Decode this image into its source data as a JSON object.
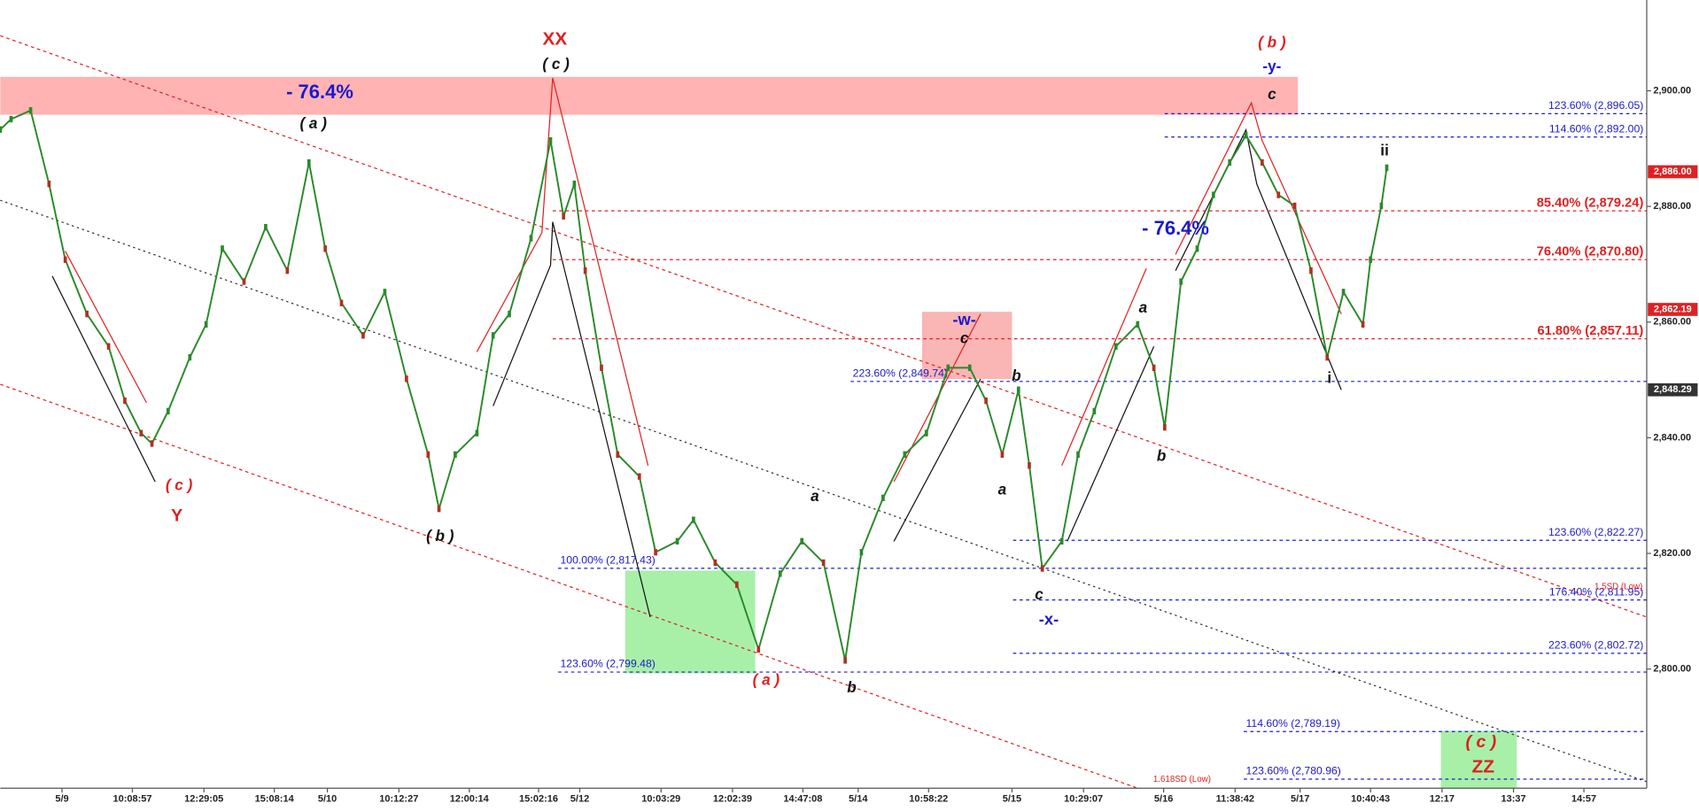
{
  "chart_data": {
    "type": "line",
    "ylim": [
      2779.4,
      2915.7
    ],
    "yticks": [
      {
        "value": 2800,
        "label": "2,800.00"
      },
      {
        "value": 2820,
        "label": "2,820.00"
      },
      {
        "value": 2840,
        "label": "2,840.00"
      },
      {
        "value": 2860,
        "label": "2,860.00"
      },
      {
        "value": 2880,
        "label": "2,880.00"
      },
      {
        "value": 2900,
        "label": "2,900.00"
      }
    ],
    "xtick_labels": [
      "5/9",
      "10:08:57",
      "12:29:05",
      "15:08:14",
      "5/10",
      "10:12:27",
      "12:00:14",
      "15:02:16",
      "5/12",
      "10:03:29",
      "12:02:39",
      "14:47:08",
      "5/14",
      "10:58:22",
      "5/15",
      "10:29:07",
      "5/16",
      "11:38:42",
      "5/17",
      "10:40:43",
      "12:17",
      "13:37",
      "14:57"
    ],
    "series": [
      {
        "color": "#2a8a2a",
        "values": [
          2893.3,
          2895.1,
          2896.6,
          2883.9,
          2870.8,
          2861.4,
          2855.8,
          2846.4,
          2840.8,
          2839.0,
          2844.6,
          2853.9,
          2859.6,
          2872.7,
          2867.0,
          2876.4,
          2868.9,
          2887.6,
          2872.7,
          2863.3,
          2857.7,
          2865.2,
          2850.2,
          2837.1,
          2827.7,
          2837.1,
          2840.8,
          2857.7,
          2861.4,
          2874.5,
          2891.4,
          2878.3,
          2883.9,
          2868.9,
          2852.1,
          2837.1,
          2833.3,
          2820.2,
          2822.1,
          2825.8,
          2818.4,
          2814.6,
          2803.4,
          2816.5,
          2822.1,
          2818.4,
          2801.5,
          2820.2,
          2829.6,
          2837.1,
          2840.8,
          2852.1,
          2852.1,
          2846.4,
          2837.1,
          2848.3,
          2835.2,
          2817.4,
          2822.1,
          2837.1,
          2844.6,
          2855.8,
          2859.6,
          2852.1,
          2841.8,
          2867.0,
          2872.7,
          2882.0,
          2887.6,
          2892.3,
          2887.6,
          2882.0,
          2880.1,
          2868.9,
          2853.9,
          2865.2,
          2859.6,
          2870.8,
          2880.1,
          2886.7
        ]
      }
    ],
    "levels": [
      {
        "label": "123.60% (2,896.05)",
        "value": 2896.05,
        "color": "#1a1acc"
      },
      {
        "label": "114.60% (2,892.00)",
        "value": 2892.0,
        "color": "#1a1acc"
      },
      {
        "label": "85.40% (2,879.24)",
        "value": 2879.24,
        "color": "#e02020"
      },
      {
        "label": "76.40% (2,870.80)",
        "value": 2870.8,
        "color": "#e02020"
      },
      {
        "label": "61.80% (2,857.11)",
        "value": 2857.11,
        "color": "#e02020"
      },
      {
        "label": "223.60% (2,849.74)",
        "value": 2849.74,
        "color": "#1a1acc"
      },
      {
        "label": "123.60% (2,822.27)",
        "value": 2822.27,
        "color": "#1a1acc"
      },
      {
        "label": "100.00% (2,817.43)",
        "value": 2817.43,
        "color": "#1a1acc"
      },
      {
        "label": "176.40% (2,811.95)",
        "value": 2811.95,
        "color": "#1a1acc"
      },
      {
        "label": "223.60% (2,802.72)",
        "value": 2802.72,
        "color": "#1a1acc"
      },
      {
        "label": "123.60% (2,799.48)",
        "value": 2799.48,
        "color": "#1a1acc"
      },
      {
        "label": "114.60% (2,789.19)",
        "value": 2789.19,
        "color": "#1a1acc"
      },
      {
        "label": "123.60% (2,780.96)",
        "value": 2780.96,
        "color": "#1a1acc"
      }
    ],
    "price_tags": [
      {
        "label": "2,886.00",
        "value": 2886.0,
        "color": "#e02020"
      },
      {
        "label": "2,862.19",
        "value": 2862.19,
        "color": "#e02020"
      },
      {
        "label": "2,848.29",
        "value": 2848.29,
        "color": "#333333"
      }
    ],
    "annotations": [
      {
        "text": "XX",
        "color": "#e02020"
      },
      {
        "text": "( c )",
        "color": "#111111"
      },
      {
        "text": "( a )",
        "color": "#111111"
      },
      {
        "text": "- 76.4%",
        "color": "#1a1acc"
      },
      {
        "text": "( c )",
        "color": "#e02020"
      },
      {
        "text": "Y",
        "color": "#e02020"
      },
      {
        "text": "( b )",
        "color": "#111111"
      },
      {
        "text": "( a )",
        "color": "#e02020"
      },
      {
        "text": "a",
        "color": "#111111"
      },
      {
        "text": "b",
        "color": "#111111"
      },
      {
        "text": "-w-",
        "color": "#1a1acc"
      },
      {
        "text": "c",
        "color": "#111111"
      },
      {
        "text": "b",
        "color": "#111111"
      },
      {
        "text": "a",
        "color": "#111111"
      },
      {
        "text": "c",
        "color": "#111111"
      },
      {
        "text": "-x-",
        "color": "#1a1acc"
      },
      {
        "text": "b",
        "color": "#111111"
      },
      {
        "text": "a",
        "color": "#111111"
      },
      {
        "text": "- 76.4%",
        "color": "#1a1acc"
      },
      {
        "text": "( b )",
        "color": "#e02020"
      },
      {
        "text": "-y-",
        "color": "#1a1acc"
      },
      {
        "text": "c",
        "color": "#111111"
      },
      {
        "text": "ii",
        "color": "#111111"
      },
      {
        "text": "i",
        "color": "#111111"
      },
      {
        "text": "( c )",
        "color": "#e02020"
      },
      {
        "text": "ZZ",
        "color": "#e02020"
      },
      {
        "text": "1.5SD (Low)",
        "color": "#e02020"
      },
      {
        "text": "1.618SD (Low)",
        "color": "#e02020"
      }
    ]
  }
}
